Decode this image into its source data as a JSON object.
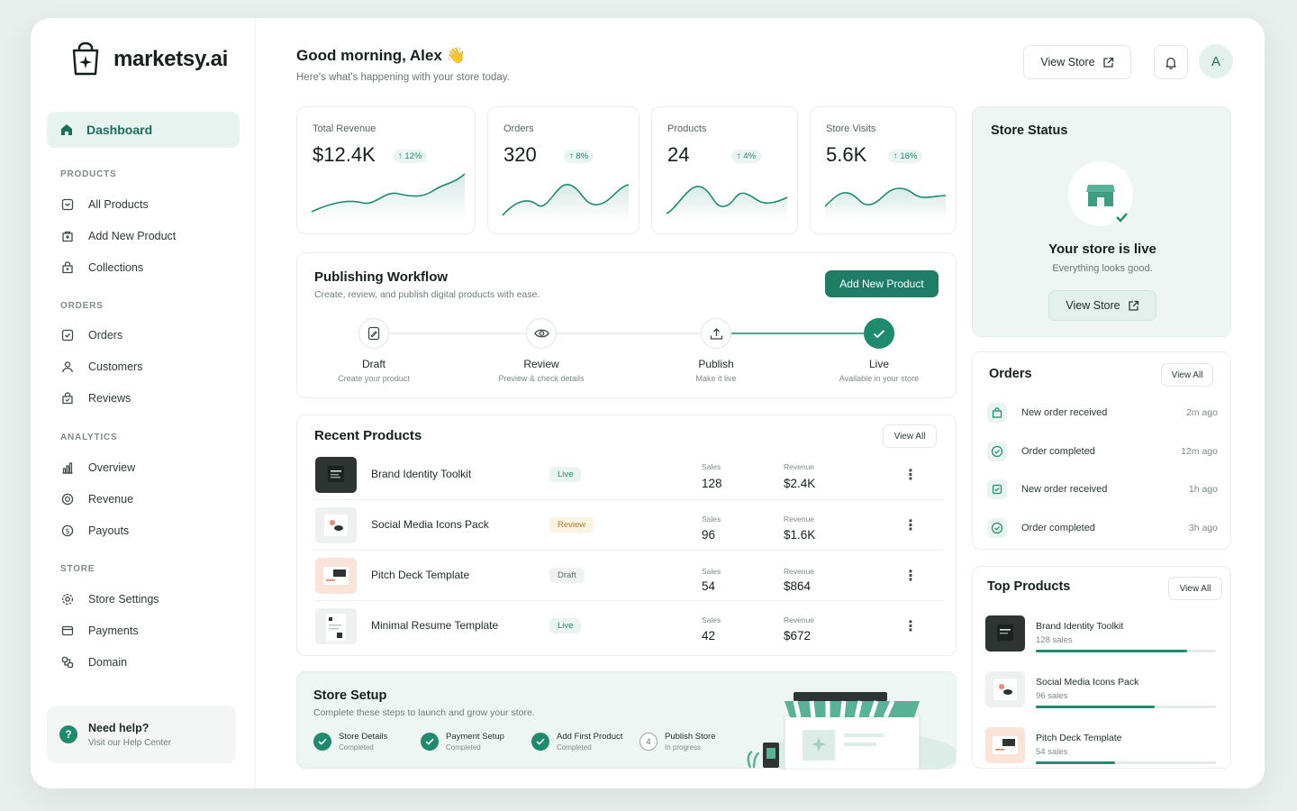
{
  "brand": {
    "name": "marketsy.ai"
  },
  "sidebar": {
    "active": {
      "label": "Dashboard",
      "icon": "home-icon"
    },
    "sections": [
      {
        "title": "PRODUCTS",
        "items": [
          {
            "label": "All Products",
            "icon": "box-icon"
          },
          {
            "label": "Add New Product",
            "icon": "add-box-icon"
          },
          {
            "label": "Collections",
            "icon": "collection-icon"
          }
        ]
      },
      {
        "title": "ORDERS",
        "items": [
          {
            "label": "Orders",
            "icon": "orders-icon"
          },
          {
            "label": "Customers",
            "icon": "user-icon"
          },
          {
            "label": "Reviews",
            "icon": "review-icon"
          }
        ]
      },
      {
        "title": "ANALYTICS",
        "items": [
          {
            "label": "Overview",
            "icon": "bar-chart-icon"
          },
          {
            "label": "Revenue",
            "icon": "coin-icon"
          },
          {
            "label": "Payouts",
            "icon": "dollar-icon"
          }
        ]
      },
      {
        "title": "STORE",
        "items": [
          {
            "label": "Store Settings",
            "icon": "gear-icon"
          },
          {
            "label": "Payments",
            "icon": "card-icon"
          },
          {
            "label": "Domain",
            "icon": "link-icon"
          }
        ]
      }
    ],
    "help": {
      "title": "Need help?",
      "subtitle": "Visit our Help Center"
    }
  },
  "header": {
    "greeting": "Good morning, Alex 👋",
    "subtitle": "Here's what's happening with your store today.",
    "view_store": "View Store",
    "avatar": "A"
  },
  "stats": [
    {
      "label": "Total Revenue",
      "value": "$12.4K",
      "change": "↑ 12%"
    },
    {
      "label": "Orders",
      "value": "320",
      "change": "↑ 8%"
    },
    {
      "label": "Products",
      "value": "24",
      "change": "↑ 4%"
    },
    {
      "label": "Store Visits",
      "value": "5.6K",
      "change": "↑ 16%"
    }
  ],
  "workflow": {
    "title": "Publishing Workflow",
    "subtitle": "Create, review, and publish digital products with ease.",
    "add_button": "Add New Product",
    "steps": [
      {
        "name": "Draft",
        "desc": "Create your product"
      },
      {
        "name": "Review",
        "desc": "Preview & check details"
      },
      {
        "name": "Publish",
        "desc": "Make it live"
      },
      {
        "name": "Live",
        "desc": "Available in your store"
      }
    ]
  },
  "recent": {
    "title": "Recent Products",
    "view_all": "View All",
    "sales_label": "Sales",
    "revenue_label": "Revenue",
    "rows": [
      {
        "name": "Brand Identity Toolkit",
        "status": "Live",
        "sales": "128",
        "revenue": "$2.4K"
      },
      {
        "name": "Social Media Icons Pack",
        "status": "Review",
        "sales": "96",
        "revenue": "$1.6K"
      },
      {
        "name": "Pitch Deck Template",
        "status": "Draft",
        "sales": "54",
        "revenue": "$864"
      },
      {
        "name": "Minimal Resume Template",
        "status": "Live",
        "sales": "42",
        "revenue": "$672"
      }
    ]
  },
  "setup": {
    "title": "Store Setup",
    "subtitle": "Complete these steps to launch and grow your store.",
    "steps": [
      {
        "name": "Store Details",
        "status": "Completed"
      },
      {
        "name": "Payment Setup",
        "status": "Completed"
      },
      {
        "name": "Add First Product",
        "status": "Completed"
      },
      {
        "name": "Publish Store",
        "status": "In progress",
        "num": "4"
      }
    ]
  },
  "store_status": {
    "title": "Store Status",
    "headline": "Your store is live",
    "sub": "Everything looks good.",
    "button": "View Store"
  },
  "orders": {
    "title": "Orders",
    "view_all": "View All",
    "rows": [
      {
        "text": "New order received",
        "time": "2m ago"
      },
      {
        "text": "Order completed",
        "time": "12m ago"
      },
      {
        "text": "New order received",
        "time": "1h ago"
      },
      {
        "text": "Order completed",
        "time": "3h ago"
      }
    ]
  },
  "top_products": {
    "title": "Top Products",
    "view_all": "View All",
    "rows": [
      {
        "name": "Brand Identity Toolkit",
        "sales": "128 sales",
        "share": 0.84
      },
      {
        "name": "Social Media Icons Pack",
        "sales": "96 sales",
        "share": 0.66
      },
      {
        "name": "Pitch Deck Template",
        "sales": "54 sales",
        "share": 0.44
      }
    ]
  },
  "colors": {
    "accent": "#1f7d66",
    "accent_light": "#e6f3ef",
    "review": "#b5782a"
  }
}
